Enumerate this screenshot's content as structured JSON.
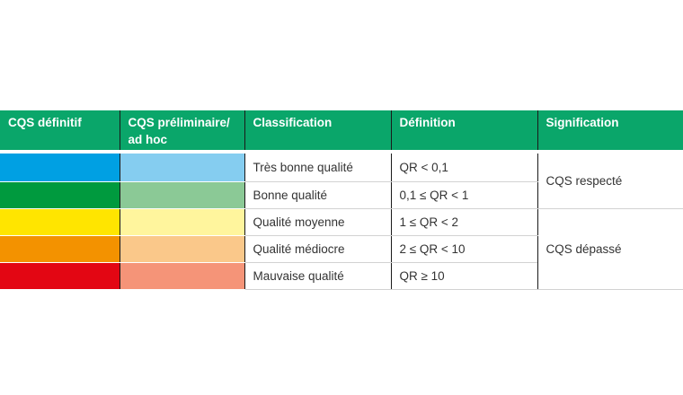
{
  "table": {
    "headers": [
      "CQS définitif",
      "CQS préliminaire/\nad hoc",
      "Classification",
      "Définition",
      "Signification"
    ],
    "rows": [
      {
        "final_color": "#00a0e3",
        "prelim_color": "#85cdf0",
        "classification": "Très bonne qualité",
        "definition": "QR < 0,1"
      },
      {
        "final_color": "#009a3e",
        "prelim_color": "#8bc996",
        "classification": "Bonne qualité",
        "definition": "0,1 ≤ QR < 1"
      },
      {
        "final_color": "#ffe500",
        "prelim_color": "#fff59d",
        "classification": "Qualité moyenne",
        "definition": "1 ≤ QR < 2"
      },
      {
        "final_color": "#f39200",
        "prelim_color": "#fac88a",
        "classification": "Qualité médiocre",
        "definition": "2 ≤ QR < 10"
      },
      {
        "final_color": "#e30613",
        "prelim_color": "#f59478",
        "classification": "Mauvaise qualité",
        "definition": "QR ≥ 10"
      }
    ],
    "significations": [
      "CQS respecté",
      "CQS dépassé"
    ]
  },
  "colors": {
    "header_bg": "#0aa66a",
    "header_text": "#ffffff"
  }
}
